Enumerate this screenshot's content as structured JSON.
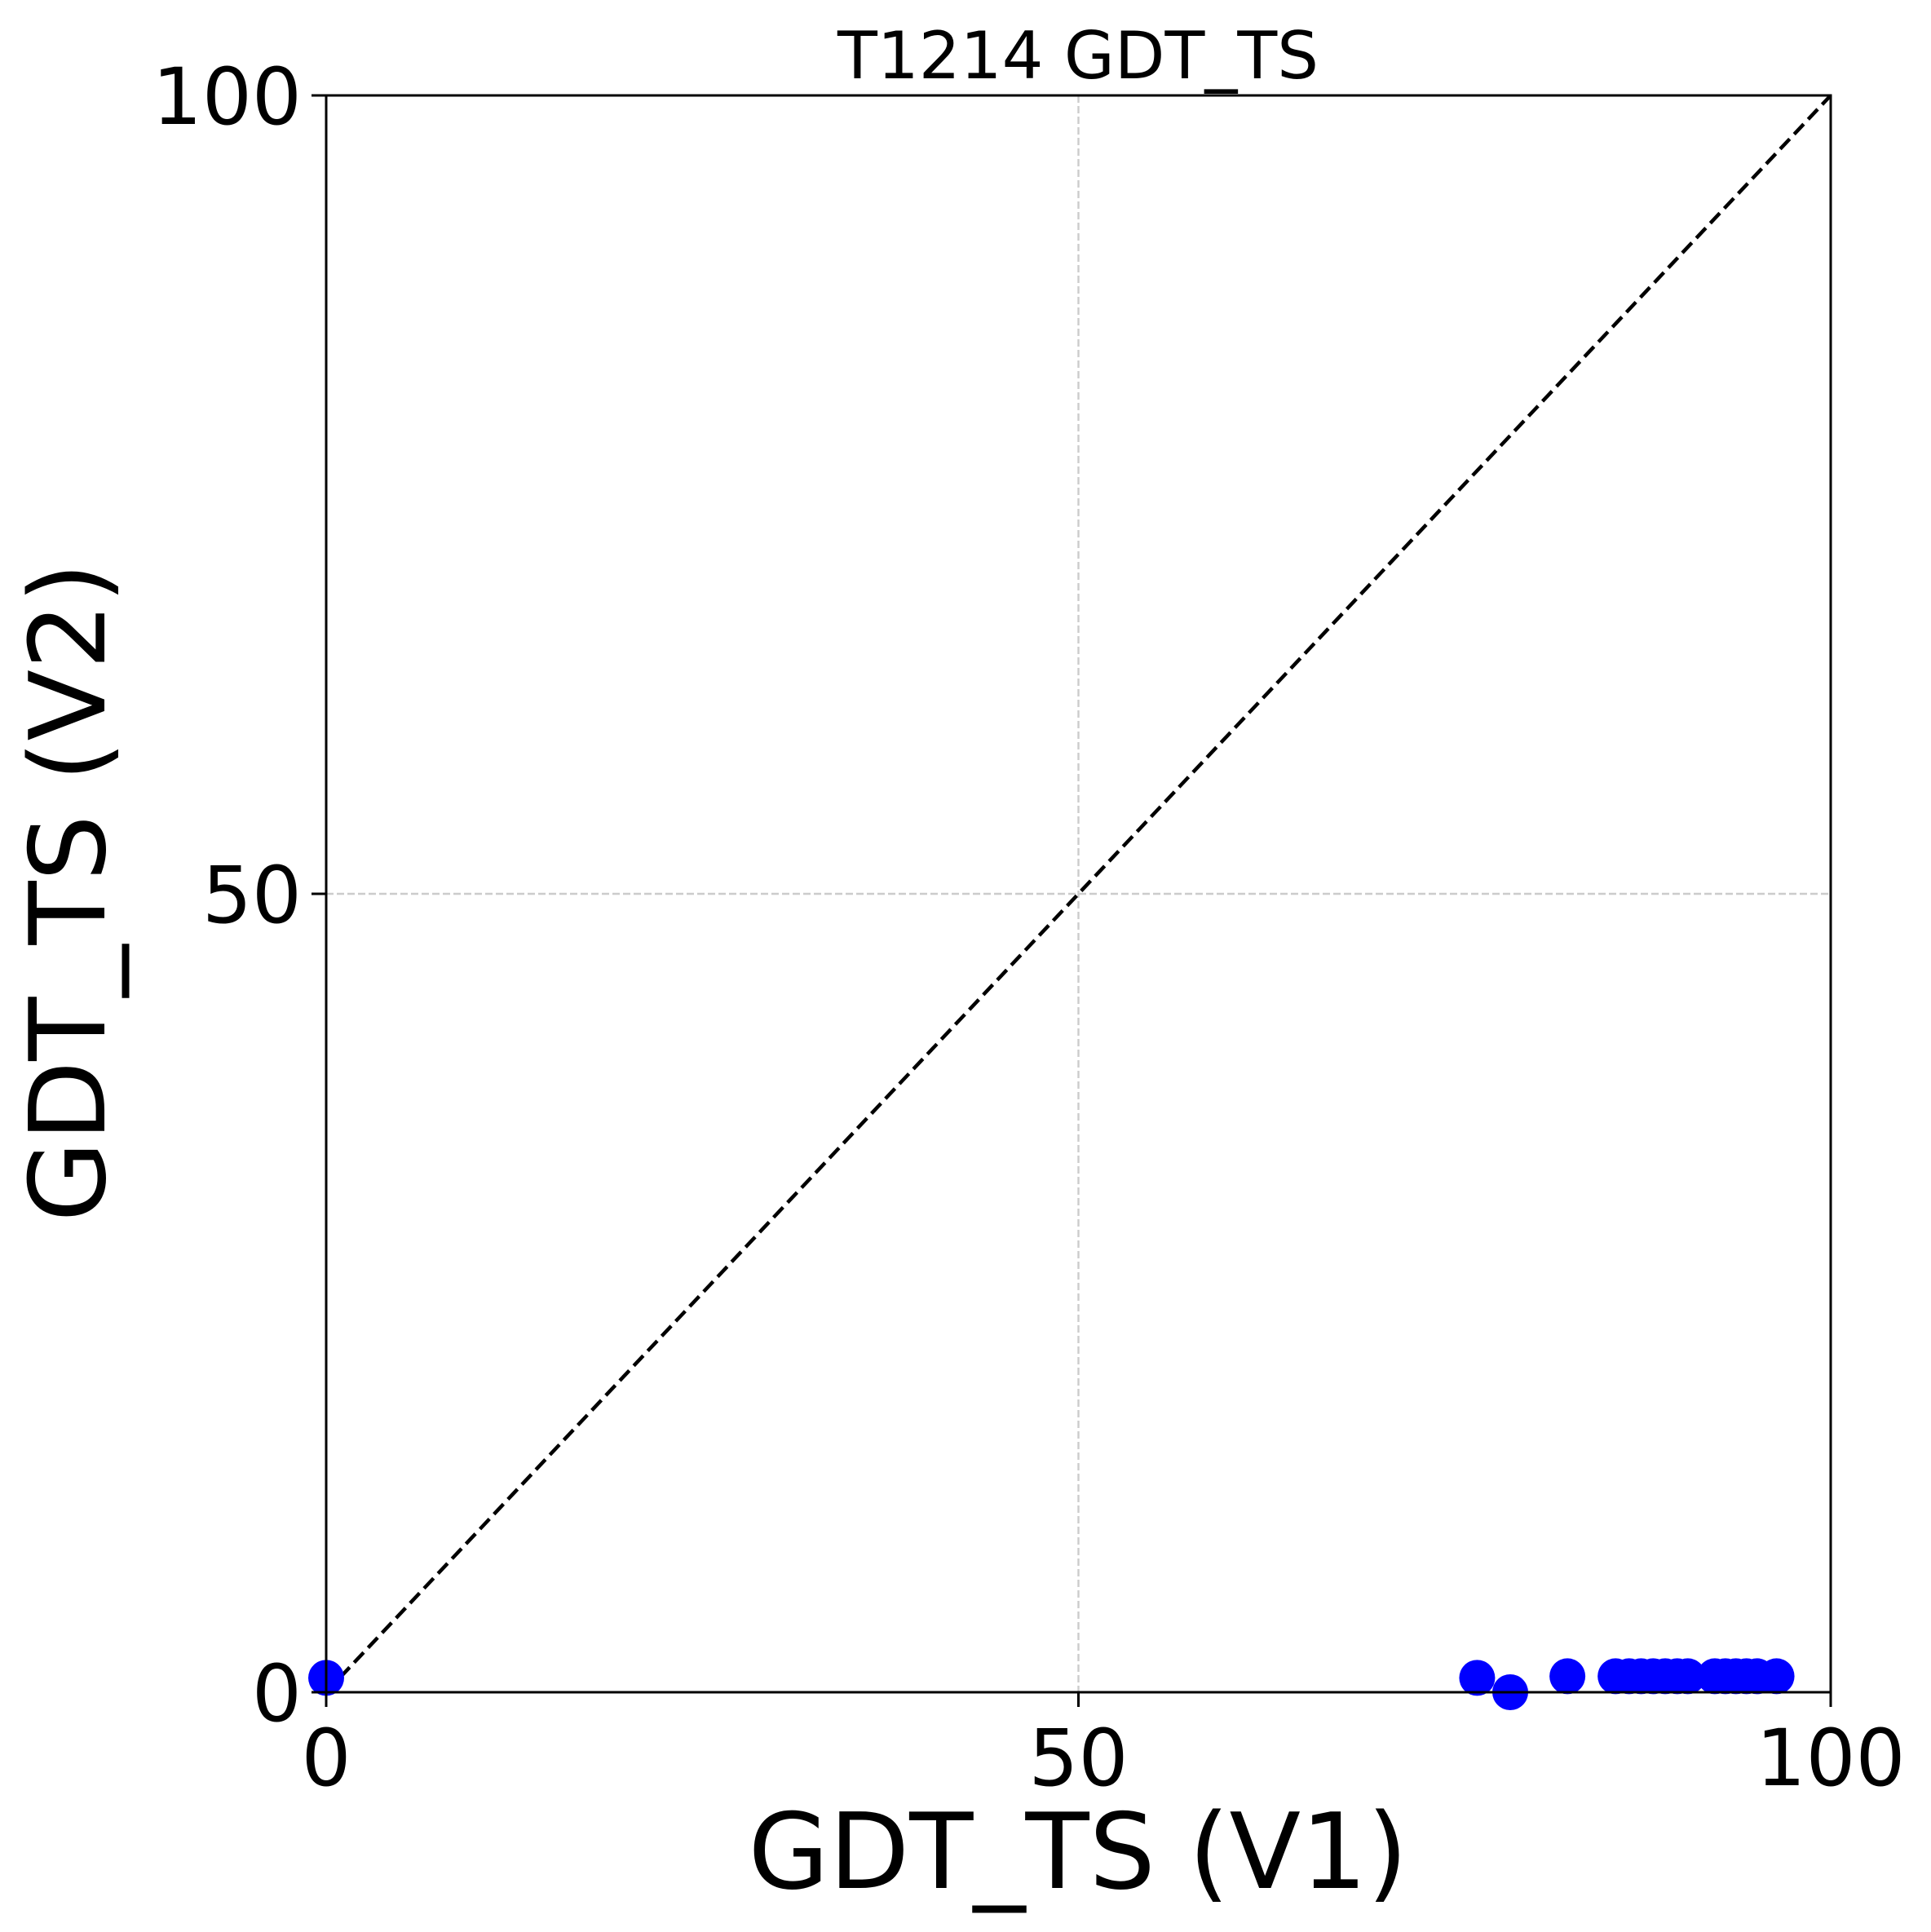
{
  "chart_data": {
    "type": "scatter",
    "title": "T1214 GDT_TS",
    "xlabel": "GDT_TS (V1)",
    "ylabel": "GDT_TS (V2)",
    "xlim": [
      0,
      100
    ],
    "ylim": [
      0,
      100
    ],
    "xticks": [
      0,
      50,
      100
    ],
    "yticks": [
      0,
      50,
      100
    ],
    "xtick_labels": [
      "0",
      "50",
      "100"
    ],
    "ytick_labels": [
      "0",
      "50",
      "100"
    ],
    "grid": true,
    "reference_line": "y = x (dashed)",
    "series": [
      {
        "color": "#0000ff",
        "points": [
          {
            "x": 0.0,
            "y": 0.9
          },
          {
            "x": 76.5,
            "y": 0.9
          },
          {
            "x": 78.7,
            "y": 0.0
          },
          {
            "x": 82.5,
            "y": 1.0
          },
          {
            "x": 85.7,
            "y": 1.0
          },
          {
            "x": 86.6,
            "y": 1.0
          },
          {
            "x": 87.4,
            "y": 1.0
          },
          {
            "x": 88.2,
            "y": 1.0
          },
          {
            "x": 89.0,
            "y": 1.0
          },
          {
            "x": 89.8,
            "y": 1.0
          },
          {
            "x": 90.5,
            "y": 1.0
          },
          {
            "x": 92.3,
            "y": 1.0
          },
          {
            "x": 93.0,
            "y": 1.0
          },
          {
            "x": 93.7,
            "y": 1.0
          },
          {
            "x": 94.4,
            "y": 1.0
          },
          {
            "x": 95.1,
            "y": 1.0
          },
          {
            "x": 96.4,
            "y": 1.0
          }
        ]
      }
    ],
    "colors": {
      "points": "#0000ff",
      "reference_line": "#000000",
      "grid": "#cccccc",
      "axes": "#000000"
    }
  }
}
